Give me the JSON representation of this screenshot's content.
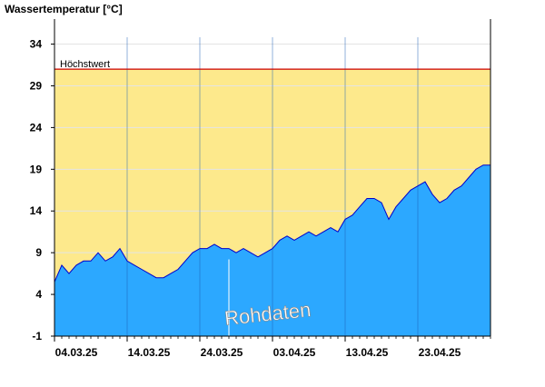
{
  "chart_data": {
    "type": "area",
    "title": "Wassertemperatur [°C]",
    "xlabel": "",
    "ylabel": "",
    "ylim": [
      -1,
      37
    ],
    "y_ticks": [
      "-1",
      "4",
      "9",
      "14",
      "19",
      "24",
      "29",
      "34"
    ],
    "x_range": [
      "2025-03-04",
      "2025-05-03"
    ],
    "x_ticks": [
      {
        "date": "2025-03-04",
        "label": "04.03.25"
      },
      {
        "date": "2025-03-14",
        "label": "14.03.25"
      },
      {
        "date": "2025-03-24",
        "label": "24.03.25"
      },
      {
        "date": "2025-04-03",
        "label": "03.04.25"
      },
      {
        "date": "2025-04-13",
        "label": "13.04.25"
      },
      {
        "date": "2025-04-23",
        "label": "23.04.25"
      }
    ],
    "grid": true,
    "threshold": {
      "label": "Höchstwert",
      "value": 31,
      "color": "#cc0000"
    },
    "threshold_fill_color": "#fde98c",
    "area_color": "#2ca8ff",
    "line_color": "#0000cc",
    "watermark": "Rohdaten",
    "series": [
      {
        "x": [
          "2025-03-04",
          "2025-03-05",
          "2025-03-06",
          "2025-03-07",
          "2025-03-08",
          "2025-03-09",
          "2025-03-10",
          "2025-03-11",
          "2025-03-12",
          "2025-03-13",
          "2025-03-14",
          "2025-03-15",
          "2025-03-16",
          "2025-03-17",
          "2025-03-18",
          "2025-03-19",
          "2025-03-20",
          "2025-03-21",
          "2025-03-22",
          "2025-03-23",
          "2025-03-24",
          "2025-03-25",
          "2025-03-26",
          "2025-03-27",
          "2025-03-28",
          "2025-03-29",
          "2025-03-30",
          "2025-03-31",
          "2025-04-01",
          "2025-04-02",
          "2025-04-03",
          "2025-04-04",
          "2025-04-05",
          "2025-04-06",
          "2025-04-07",
          "2025-04-08",
          "2025-04-09",
          "2025-04-10",
          "2025-04-11",
          "2025-04-12",
          "2025-04-13",
          "2025-04-14",
          "2025-04-15",
          "2025-04-16",
          "2025-04-17",
          "2025-04-18",
          "2025-04-19",
          "2025-04-20",
          "2025-04-21",
          "2025-04-22",
          "2025-04-23",
          "2025-04-24",
          "2025-04-25",
          "2025-04-26",
          "2025-04-27",
          "2025-04-28",
          "2025-04-29",
          "2025-04-30",
          "2025-05-01",
          "2025-05-02",
          "2025-05-03"
        ],
        "values": [
          5.5,
          7.5,
          6.5,
          7.5,
          8,
          8,
          9,
          8,
          8.5,
          9.5,
          8,
          7.5,
          7,
          6.5,
          6,
          6,
          6.5,
          7,
          8,
          9,
          9.5,
          9.5,
          10,
          9.5,
          9.5,
          9,
          9.5,
          9,
          8.5,
          9,
          9.5,
          10.5,
          11,
          10.5,
          11,
          11.5,
          11,
          11.5,
          12,
          11.5,
          13,
          13.5,
          14.5,
          15.5,
          15.5,
          15,
          13,
          14.5,
          15.5,
          16.5,
          17,
          17.5,
          16,
          15,
          15.5,
          16.5,
          17,
          18,
          19,
          19.5,
          19.5
        ]
      }
    ]
  }
}
